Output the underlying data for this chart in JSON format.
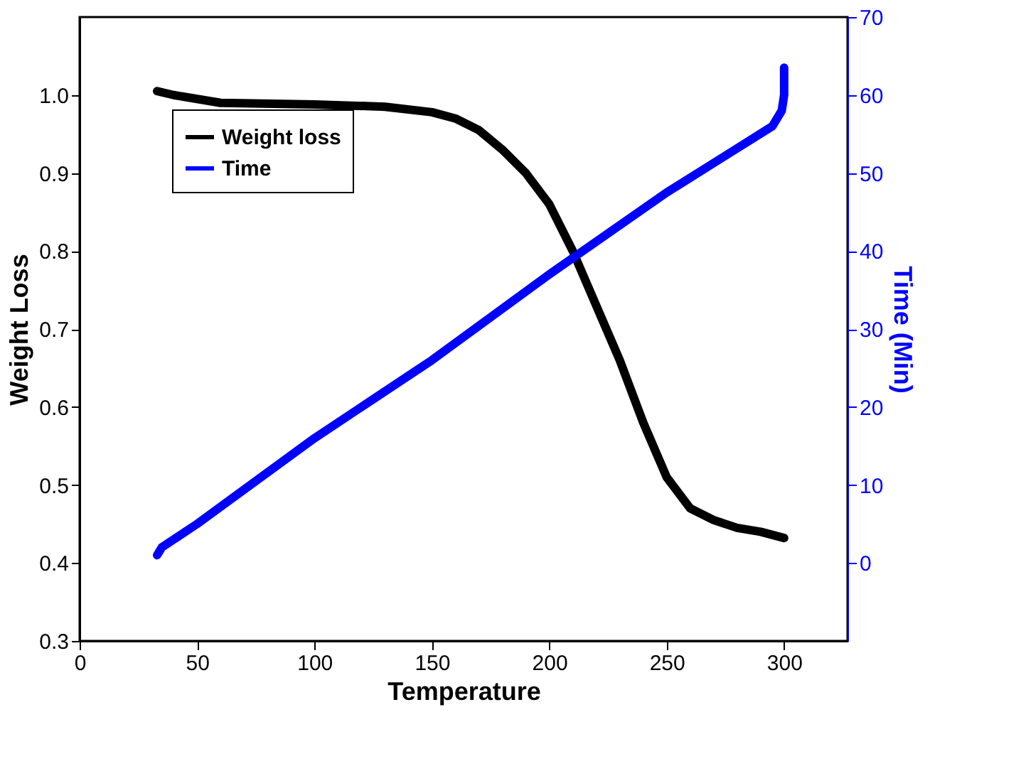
{
  "chart_data": {
    "type": "line",
    "xlabel": "Temperature",
    "ylabel": "Weight Loss",
    "y2label": "Time (Min)",
    "xlim": [
      0,
      327
    ],
    "xticks": [
      0,
      50,
      100,
      150,
      200,
      250,
      300
    ],
    "ylim": [
      0.3,
      1.1
    ],
    "yticks": [
      0.3,
      0.4,
      0.5,
      0.6,
      0.7,
      0.8,
      0.9,
      {
        "value": 1,
        "label": "1.0"
      }
    ],
    "y2lim": [
      -10,
      70
    ],
    "y2ticks": [
      0,
      10,
      20,
      30,
      40,
      50,
      60,
      70
    ],
    "legend": "top left",
    "grid": false,
    "series": [
      {
        "name": "Weight loss",
        "color": "#000000",
        "x": [
          33,
          40,
          60,
          100,
          130,
          150,
          160,
          170,
          180,
          190,
          200,
          210,
          220,
          230,
          240,
          250,
          260,
          270,
          280,
          290,
          300
        ],
        "values": [
          1.005,
          1.0,
          0.99,
          0.988,
          0.985,
          0.978,
          0.97,
          0.955,
          0.93,
          0.9,
          0.86,
          0.8,
          0.73,
          0.66,
          0.58,
          0.51,
          0.47,
          0.455,
          0.445,
          0.44,
          0.432
        ]
      },
      {
        "name": "Time",
        "color": "#0000ff",
        "axis": "y2",
        "x": [
          33,
          35,
          40,
          50,
          100,
          150,
          200,
          250,
          295,
          299,
          300,
          300
        ],
        "values": [
          1,
          2,
          3,
          5,
          16,
          26,
          37,
          47.5,
          56,
          58,
          60,
          63.5
        ]
      }
    ]
  }
}
